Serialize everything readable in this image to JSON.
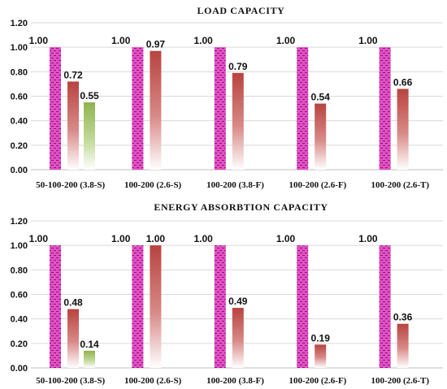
{
  "chart_data": [
    {
      "type": "bar",
      "title": "LOAD CAPACITY",
      "categories": [
        "50-100-200 (3.8-S)",
        "100-200 (2.6-S)",
        "100-200 (3.8-F)",
        "100-200 (2.6-F)",
        "100-200 (2.6-T)"
      ],
      "series": [
        {
          "values": [
            1.0,
            1.0,
            1.0,
            1.0,
            1.0
          ],
          "labels": [
            "1.00",
            "1.00",
            "1.00",
            "1.00",
            "1.00"
          ],
          "color": "#e64ec8",
          "pattern": "dotted-pink"
        },
        {
          "values": [
            0.72,
            0.97,
            0.79,
            0.54,
            0.66
          ],
          "labels": [
            "0.72",
            "0.97",
            "0.79",
            "0.54",
            "0.66"
          ],
          "color": "#c0504d",
          "pattern": "gradient-red"
        },
        {
          "values": [
            0.55,
            null,
            null,
            null,
            null
          ],
          "labels": [
            "0.55",
            "",
            "",
            "",
            ""
          ],
          "color": "#9bbb59",
          "pattern": "gradient-green"
        }
      ],
      "ylim": [
        0,
        1.2
      ],
      "yticks": [
        "0.00",
        "0.20",
        "0.40",
        "0.60",
        "0.80",
        "1.00",
        "1.20"
      ],
      "grid": true
    },
    {
      "type": "bar",
      "title": "ENERGY ABSORBTION CAPACITY",
      "categories": [
        "50-100-200 (3.8-S)",
        "100-200 (2.6-S)",
        "100-200 (3.8-F)",
        "100-200 (2.6-F)",
        "100-200 (2.6-T)"
      ],
      "series": [
        {
          "values": [
            1.0,
            1.0,
            1.0,
            1.0,
            1.0
          ],
          "labels": [
            "1.00",
            "1.00",
            "1.00",
            "1.00",
            "1.00"
          ],
          "color": "#e64ec8",
          "pattern": "dotted-pink"
        },
        {
          "values": [
            0.48,
            1.0,
            0.49,
            0.19,
            0.36
          ],
          "labels": [
            "0.48",
            "1.00",
            "0.49",
            "0.19",
            "0.36"
          ],
          "color": "#c0504d",
          "pattern": "gradient-red"
        },
        {
          "values": [
            0.14,
            null,
            null,
            null,
            null
          ],
          "labels": [
            "0.14",
            "",
            "",
            "",
            ""
          ],
          "color": "#9bbb59",
          "pattern": "gradient-green"
        }
      ],
      "ylim": [
        0,
        1.2
      ],
      "yticks": [
        "0.00",
        "0.20",
        "0.40",
        "0.60",
        "0.80",
        "1.00",
        "1.20"
      ],
      "grid": true
    }
  ]
}
